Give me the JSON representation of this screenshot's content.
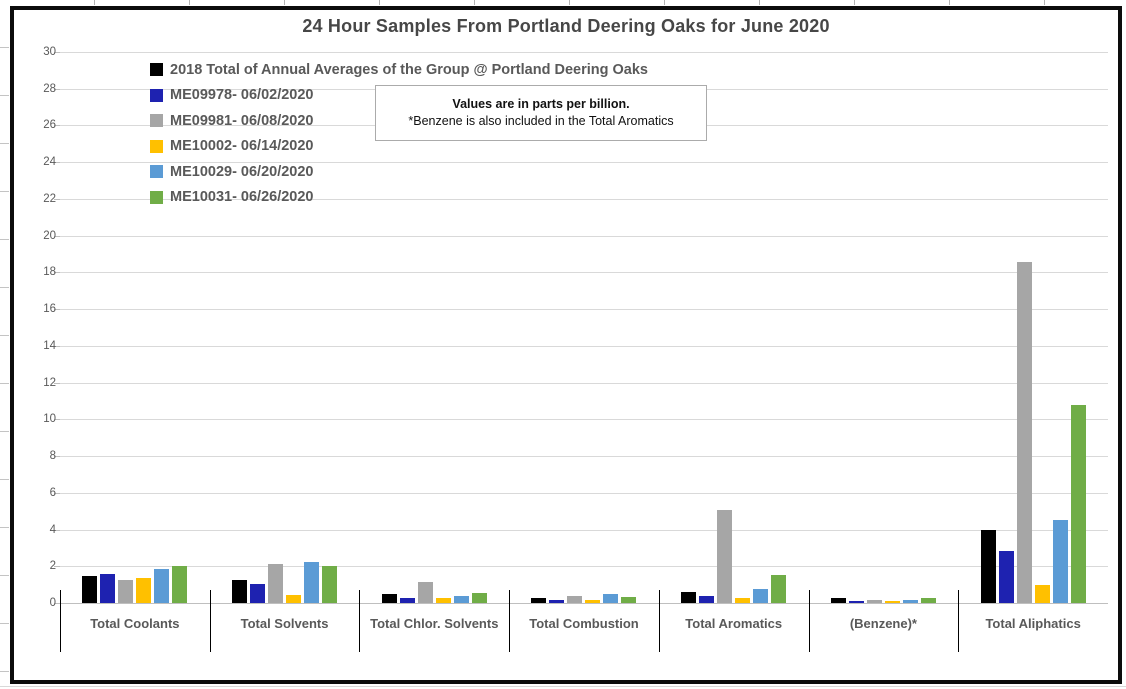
{
  "chart_data": {
    "type": "bar",
    "title": "24 Hour Samples From Portland Deering Oaks for June 2020",
    "note_line1": "Values are in parts per billion.",
    "note_line2": "*Benzene is also included in the Total Aromatics",
    "categories": [
      "Total Coolants",
      "Total Solvents",
      "Total Chlor. Solvents",
      "Total Combustion",
      "Total Aromatics",
      "(Benzene)*",
      "Total Aliphatics"
    ],
    "series": [
      {
        "name": "2018 Total of Annual Averages of the Group @ Portland Deering Oaks",
        "color": "#000000",
        "values": [
          1.45,
          1.25,
          0.5,
          0.3,
          0.6,
          0.25,
          4.0
        ]
      },
      {
        "name": "ME09978- 06/02/2020",
        "color": "#1e22b0",
        "values": [
          1.6,
          1.05,
          0.25,
          0.15,
          0.4,
          0.1,
          2.85
        ]
      },
      {
        "name": "ME09981- 06/08/2020",
        "color": "#a6a6a6",
        "values": [
          1.25,
          2.1,
          1.15,
          0.4,
          5.05,
          0.15,
          18.55
        ]
      },
      {
        "name": "ME10002- 06/14/2020",
        "color": "#ffc000",
        "values": [
          1.35,
          0.45,
          0.3,
          0.15,
          0.3,
          0.1,
          1.0
        ]
      },
      {
        "name": "ME10029- 06/20/2020",
        "color": "#5b9bd5",
        "values": [
          1.85,
          2.25,
          0.4,
          0.5,
          0.75,
          0.15,
          4.5
        ]
      },
      {
        "name": "ME10031- 06/26/2020",
        "color": "#70ad47",
        "values": [
          2.0,
          2.0,
          0.55,
          0.35,
          1.5,
          0.3,
          10.8
        ]
      }
    ],
    "ylim": [
      0,
      30
    ],
    "ytick_step": 2,
    "grid": true,
    "legend_position": "top-left-inside",
    "colors": {
      "grid": "#d9d9d9",
      "axis_line": "#bfbfbf",
      "axis_text": "#595959",
      "title_text": "#474747",
      "category_separator": "#000000"
    }
  }
}
